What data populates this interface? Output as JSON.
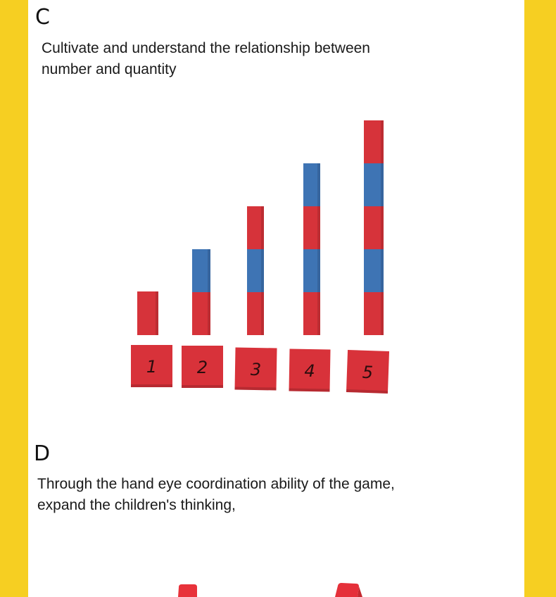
{
  "section_c": {
    "letter": "C",
    "text_line1": "Cultivate and understand the relationship between",
    "text_line2": "number and quantity"
  },
  "number_rods": {
    "cards": [
      "1",
      "2",
      "3",
      "4",
      "5"
    ],
    "rods": [
      {
        "quantity": 1,
        "segments": [
          "red"
        ]
      },
      {
        "quantity": 2,
        "segments": [
          "red",
          "blue"
        ]
      },
      {
        "quantity": 3,
        "segments": [
          "red",
          "blue",
          "red"
        ]
      },
      {
        "quantity": 4,
        "segments": [
          "red",
          "blue",
          "red",
          "blue"
        ]
      },
      {
        "quantity": 5,
        "segments": [
          "red",
          "blue",
          "red",
          "blue",
          "red"
        ]
      }
    ],
    "colors": {
      "red": "#D6333A",
      "blue": "#3E74B4",
      "card": "#D8323A",
      "card_text": "#2A0D0E"
    }
  },
  "section_d": {
    "letter": "D",
    "text_line1": "Through the hand eye coordination ability of the game,",
    "text_line2": "expand the children's thinking,"
  },
  "theme": {
    "border": "#F6CF22",
    "panel": "#FFFFFF"
  }
}
